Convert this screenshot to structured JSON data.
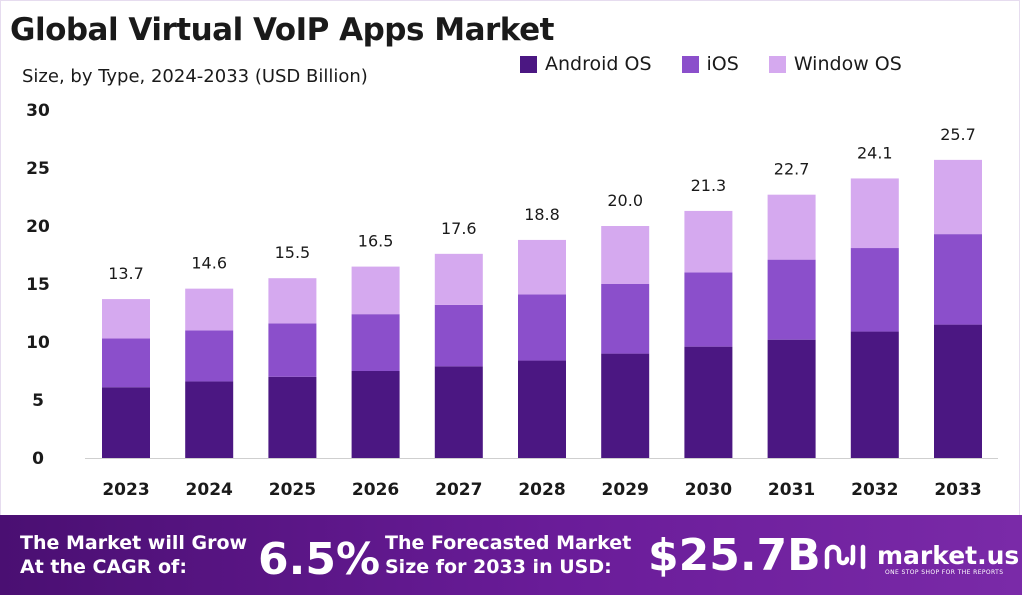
{
  "title": "Global Virtual VoIP Apps Market",
  "subtitle": "Size, by Type, 2024-2033 (USD Billion)",
  "chart_data": {
    "type": "bar",
    "stacked": true,
    "categories": [
      "2023",
      "2024",
      "2025",
      "2026",
      "2027",
      "2028",
      "2029",
      "2030",
      "2031",
      "2032",
      "2033"
    ],
    "series": [
      {
        "name": "Android OS",
        "color": "#4b1782",
        "values": [
          6.1,
          6.6,
          7.0,
          7.5,
          7.9,
          8.4,
          9.0,
          9.6,
          10.2,
          10.9,
          11.5
        ]
      },
      {
        "name": "iOS",
        "color": "#8b4fcb",
        "values": [
          4.2,
          4.4,
          4.6,
          4.9,
          5.3,
          5.7,
          6.0,
          6.4,
          6.9,
          7.2,
          7.8
        ]
      },
      {
        "name": "Window OS",
        "color": "#d5a9ef",
        "values": [
          3.4,
          3.6,
          3.9,
          4.1,
          4.4,
          4.7,
          5.0,
          5.3,
          5.6,
          6.0,
          6.4
        ]
      }
    ],
    "totals": [
      "13.7",
      "14.6",
      "15.5",
      "16.5",
      "17.6",
      "18.8",
      "20.0",
      "21.3",
      "22.7",
      "24.1",
      "25.7"
    ],
    "ylim": [
      0,
      30
    ],
    "yticks": [
      "0",
      "5",
      "10",
      "15",
      "20",
      "25",
      "30"
    ],
    "legend_position": "top-right",
    "grid": false
  },
  "footer": {
    "cagr_label_1": "The Market will Grow",
    "cagr_label_2": "At the CAGR of:",
    "cagr_value": "6.5%",
    "forecast_label_1": "The Forecasted Market",
    "forecast_label_2": "Size for 2033 in USD:",
    "forecast_value": "$25.7B",
    "brand_name": "market.us",
    "brand_tagline": "ONE STOP SHOP FOR THE REPORTS"
  }
}
